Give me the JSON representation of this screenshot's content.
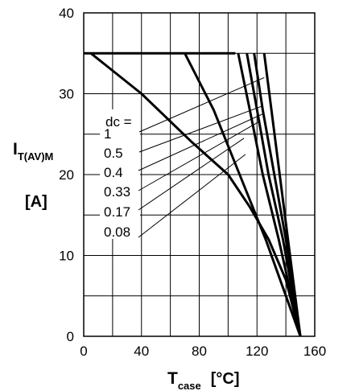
{
  "chart_data": {
    "type": "line",
    "xlabel": {
      "main": "T",
      "sub": "case",
      "unit": "[°C]"
    },
    "ylabel": {
      "main": "I",
      "sub": "T(AV)M",
      "unit": "[A]"
    },
    "xlim": [
      0,
      160
    ],
    "ylim": [
      0,
      40
    ],
    "x_ticks": [
      0,
      40,
      80,
      120,
      160
    ],
    "y_ticks": [
      0,
      10,
      20,
      30,
      40
    ],
    "grid": true,
    "x_grid_step": 20,
    "y_grid_step": 5,
    "legend_title": "dc =",
    "series": [
      {
        "name": "1",
        "points": [
          [
            125,
            35
          ],
          [
            150,
            0
          ]
        ]
      },
      {
        "name": "0.5",
        "points": [
          [
            118,
            35
          ],
          [
            124,
            28
          ],
          [
            132,
            20
          ],
          [
            140,
            12
          ],
          [
            150,
            0
          ]
        ]
      },
      {
        "name": "0.4",
        "points": [
          [
            113,
            35
          ],
          [
            120,
            28
          ],
          [
            128,
            20
          ],
          [
            138,
            12
          ],
          [
            150,
            0
          ]
        ]
      },
      {
        "name": "0.33",
        "points": [
          [
            107,
            35
          ],
          [
            115,
            28
          ],
          [
            124,
            20
          ],
          [
            135,
            12
          ],
          [
            150,
            0
          ]
        ]
      },
      {
        "name": "0.17",
        "points": [
          [
            70,
            35
          ],
          [
            90,
            28
          ],
          [
            108,
            20
          ],
          [
            126,
            12
          ],
          [
            150,
            0
          ]
        ]
      },
      {
        "name": "0.08",
        "points": [
          [
            5,
            35
          ],
          [
            40,
            30
          ],
          [
            75,
            24
          ],
          [
            100,
            20
          ],
          [
            115,
            16
          ],
          [
            128,
            12
          ],
          [
            140,
            7
          ],
          [
            150,
            0
          ]
        ]
      }
    ],
    "legend_targets": [
      {
        "label": "1",
        "x": 125,
        "y": 32
      },
      {
        "label": "0.5",
        "x": 124,
        "y": 28.5
      },
      {
        "label": "0.4",
        "x": 124,
        "y": 27.5
      },
      {
        "label": "0.33",
        "x": 121,
        "y": 26.5
      },
      {
        "label": "0.17",
        "x": 111,
        "y": 24.5
      },
      {
        "label": "0.08",
        "x": 112,
        "y": 22.5
      }
    ]
  }
}
